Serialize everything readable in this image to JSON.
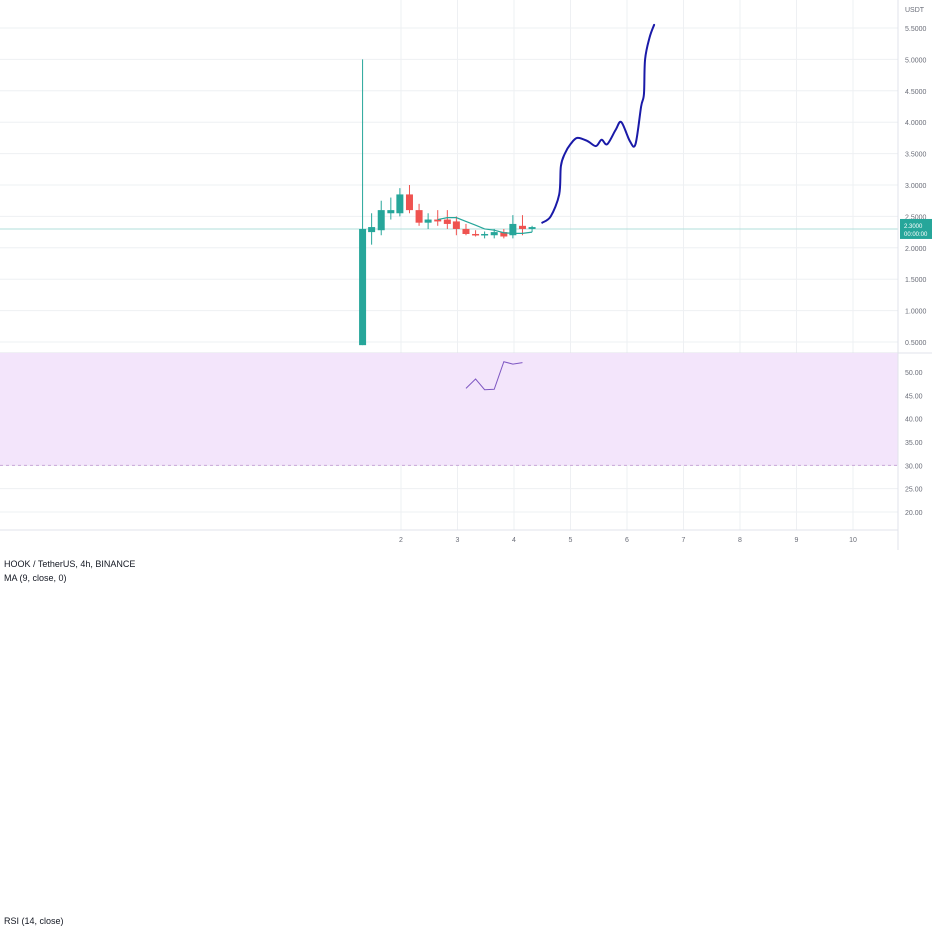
{
  "header": {
    "symbol": "HOOK / TetherUS, 4h, BINANCE",
    "ma_label": "MA (9, close, 0)",
    "rsi_label": "RSI (14, close)",
    "currency": "USDT"
  },
  "price_tag": {
    "line1": "2.3000",
    "line2": "00:00:00"
  },
  "colors": {
    "up": "#26a69a",
    "down": "#ef5350",
    "ma": "#26a69a",
    "rsi": "#7e57c2",
    "forecast": "#1a1aa8",
    "rsi_band": "#f3e5fb",
    "grid": "#eef0f3",
    "price_line": "#b2dfdb"
  },
  "chart_data": [
    {
      "type": "candlestick",
      "name": "price",
      "currency": "USDT",
      "y_ticks": [
        "0.5000",
        "1.0000",
        "1.5000",
        "2.0000",
        "2.5000",
        "3.0000",
        "3.5000",
        "4.0000",
        "4.5000",
        "5.0000",
        "5.5000"
      ],
      "x_ticks": [
        "2",
        "3",
        "4",
        "5",
        "6",
        "7",
        "8",
        "9",
        "10"
      ],
      "ylim": [
        0.5,
        5.7
      ],
      "xlim": [
        1.05,
        11.7
      ],
      "grid": true,
      "last_price": 2.3,
      "candles": [
        {
          "x": 1.32,
          "o": 0.45,
          "h": 5.0,
          "l": 0.45,
          "c": 2.3
        },
        {
          "x": 1.48,
          "o": 2.25,
          "h": 2.55,
          "l": 2.05,
          "c": 2.33
        },
        {
          "x": 1.65,
          "o": 2.28,
          "h": 2.75,
          "l": 2.2,
          "c": 2.6
        },
        {
          "x": 1.82,
          "o": 2.55,
          "h": 2.8,
          "l": 2.45,
          "c": 2.6
        },
        {
          "x": 1.98,
          "o": 2.55,
          "h": 2.95,
          "l": 2.5,
          "c": 2.85
        },
        {
          "x": 2.15,
          "o": 2.85,
          "h": 3.0,
          "l": 2.55,
          "c": 2.6
        },
        {
          "x": 2.32,
          "o": 2.6,
          "h": 2.7,
          "l": 2.35,
          "c": 2.4
        },
        {
          "x": 2.48,
          "o": 2.4,
          "h": 2.55,
          "l": 2.3,
          "c": 2.45
        },
        {
          "x": 2.65,
          "o": 2.45,
          "h": 2.6,
          "l": 2.35,
          "c": 2.42
        },
        {
          "x": 2.82,
          "o": 2.45,
          "h": 2.6,
          "l": 2.3,
          "c": 2.38
        },
        {
          "x": 2.98,
          "o": 2.42,
          "h": 2.5,
          "l": 2.2,
          "c": 2.3
        },
        {
          "x": 3.15,
          "o": 2.3,
          "h": 2.38,
          "l": 2.2,
          "c": 2.22
        },
        {
          "x": 3.32,
          "o": 2.22,
          "h": 2.28,
          "l": 2.18,
          "c": 2.2
        },
        {
          "x": 3.48,
          "o": 2.2,
          "h": 2.26,
          "l": 2.15,
          "c": 2.22
        },
        {
          "x": 3.65,
          "o": 2.2,
          "h": 2.3,
          "l": 2.15,
          "c": 2.25
        },
        {
          "x": 3.82,
          "o": 2.25,
          "h": 2.3,
          "l": 2.15,
          "c": 2.18
        },
        {
          "x": 3.98,
          "o": 2.2,
          "h": 2.52,
          "l": 2.15,
          "c": 2.38
        },
        {
          "x": 4.15,
          "o": 2.35,
          "h": 2.52,
          "l": 2.2,
          "c": 2.3
        },
        {
          "x": 4.32,
          "o": 2.3,
          "h": 2.35,
          "l": 2.25,
          "c": 2.33
        }
      ],
      "ma": [
        {
          "x": 2.65,
          "y": 2.45
        },
        {
          "x": 2.82,
          "y": 2.48
        },
        {
          "x": 2.98,
          "y": 2.48
        },
        {
          "x": 3.15,
          "y": 2.42
        },
        {
          "x": 3.32,
          "y": 2.36
        },
        {
          "x": 3.48,
          "y": 2.3
        },
        {
          "x": 3.65,
          "y": 2.28
        },
        {
          "x": 3.82,
          "y": 2.24
        },
        {
          "x": 3.98,
          "y": 2.23
        },
        {
          "x": 4.15,
          "y": 2.23
        },
        {
          "x": 4.32,
          "y": 2.25
        }
      ],
      "forecast": [
        {
          "x": 4.5,
          "y": 2.4
        },
        {
          "x": 4.65,
          "y": 2.5
        },
        {
          "x": 4.8,
          "y": 2.85
        },
        {
          "x": 4.83,
          "y": 3.3
        },
        {
          "x": 4.9,
          "y": 3.5
        },
        {
          "x": 5.0,
          "y": 3.65
        },
        {
          "x": 5.12,
          "y": 3.75
        },
        {
          "x": 5.3,
          "y": 3.7
        },
        {
          "x": 5.45,
          "y": 3.62
        },
        {
          "x": 5.55,
          "y": 3.72
        },
        {
          "x": 5.65,
          "y": 3.65
        },
        {
          "x": 5.8,
          "y": 3.88
        },
        {
          "x": 5.9,
          "y": 4.0
        },
        {
          "x": 6.05,
          "y": 3.7
        },
        {
          "x": 6.15,
          "y": 3.65
        },
        {
          "x": 6.25,
          "y": 4.25
        },
        {
          "x": 6.3,
          "y": 4.45
        },
        {
          "x": 6.32,
          "y": 5.0
        },
        {
          "x": 6.4,
          "y": 5.35
        },
        {
          "x": 6.48,
          "y": 5.55
        }
      ]
    },
    {
      "type": "line",
      "name": "RSI (14, close)",
      "y_ticks": [
        "20.00",
        "25.00",
        "30.00",
        "35.00",
        "40.00",
        "45.00",
        "50.00"
      ],
      "ylim": [
        17.5,
        53.5
      ],
      "band": [
        30,
        70
      ],
      "series": [
        {
          "x": [
            3.15,
            3.32,
            3.48,
            3.65,
            3.82,
            3.98,
            4.15
          ],
          "values": [
            46.5,
            48.5,
            46.2,
            46.3,
            52.2,
            51.7,
            52.0
          ]
        }
      ]
    }
  ]
}
